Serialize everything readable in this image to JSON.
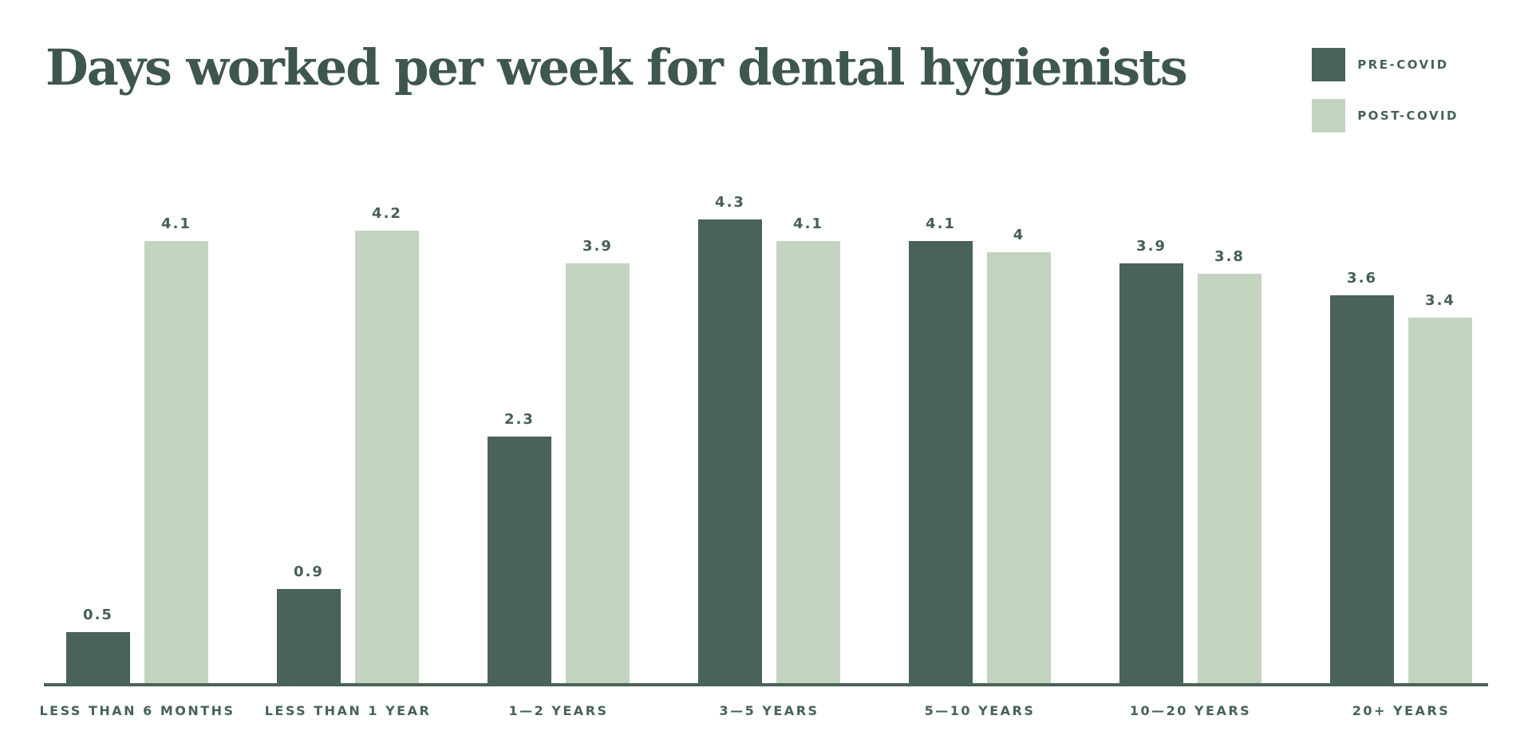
{
  "title": "Days worked per week for dental hygienists",
  "legend": {
    "items": [
      {
        "label": "PRE-COVID",
        "color": "#4a6257"
      },
      {
        "label": "POST-COVID",
        "color": "#c2d4bf"
      }
    ]
  },
  "colors": {
    "pre_covid_bar": "#4a6257",
    "post_covid_bar": "#c2d4bf",
    "title_text": "#3e574d",
    "label_text": "#46615a",
    "axis_line": "#4a6257",
    "background": "#ffffff"
  },
  "chart_data": {
    "type": "bar",
    "title": "Days worked per week for dental hygienists",
    "xlabel": "",
    "ylabel": "",
    "categories": [
      "LESS THAN 6 MONTHS",
      "LESS THAN 1 YEAR",
      "1—2 YEARS",
      "3—5 YEARS",
      "5—10 YEARS",
      "10—20 YEARS",
      "20+ YEARS"
    ],
    "series": [
      {
        "name": "PRE-COVID",
        "color": "#4a6257",
        "values": [
          0.5,
          0.9,
          2.3,
          4.3,
          4.1,
          3.9,
          3.6
        ]
      },
      {
        "name": "POST-COVID",
        "color": "#c2d4bf",
        "values": [
          4.1,
          4.2,
          3.9,
          4.1,
          4,
          3.8,
          3.4
        ]
      }
    ],
    "value_labels": [
      "0.5",
      "0.9",
      "2.3",
      "4.3",
      "4.1",
      "3.9",
      "3.6",
      "4.1",
      "4.2",
      "3.9",
      "4.1",
      "4",
      "3.8",
      "3.4"
    ],
    "ylim": [
      0,
      4.5
    ],
    "grid": false,
    "axis_ticks": false,
    "legend_position": "top-right",
    "bar_value_labels_shown": true
  }
}
